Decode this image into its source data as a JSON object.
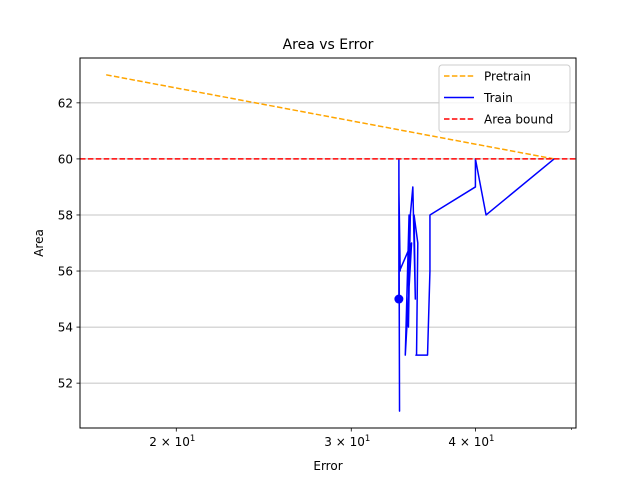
{
  "chart_data": {
    "type": "line",
    "title": "Area vs Error",
    "xlabel": "Error",
    "ylabel": "Area",
    "xscale": "log",
    "xlim": [
      16.0,
      50.5
    ],
    "ylim": [
      50.4,
      63.6
    ],
    "x_ticks": [
      {
        "value": 20,
        "label_base": "2 × 10",
        "label_exp": "1"
      },
      {
        "value": 30,
        "label_base": "3 × 10",
        "label_exp": "1"
      },
      {
        "value": 40,
        "label_base": "4 × 10",
        "label_exp": "1"
      }
    ],
    "x_minor_ticks": [
      50
    ],
    "y_ticks": [
      52,
      54,
      56,
      58,
      60,
      62
    ],
    "grid": "horizontal",
    "legend_position": "upper right",
    "series": [
      {
        "name": "Pretrain",
        "color": "#ffa500",
        "style": "dashed",
        "x": [
          17.0,
          48.0
        ],
        "y": [
          63.0,
          60.0
        ]
      },
      {
        "name": "Train",
        "color": "#0000ff",
        "style": "solid",
        "x": [
          33.5,
          33.5,
          33.55,
          33.5,
          33.6,
          33.55,
          34.5,
          34.0,
          34.3,
          34.25,
          34.4,
          34.6,
          34.8,
          34.7,
          35.0,
          34.9,
          34.85,
          35.1,
          35.0,
          35.8,
          36.0,
          36.0,
          40.0,
          40.0,
          41.0,
          48.0
        ],
        "y": [
          55.0,
          60.0,
          51.0,
          59.0,
          56.0,
          56.0,
          57.0,
          53.0,
          58.0,
          54.0,
          58.0,
          59.0,
          55.0,
          58.0,
          57.0,
          53.0,
          53.0,
          53.0,
          53.0,
          53.0,
          56.0,
          58.0,
          59.0,
          60.0,
          58.0,
          60.0
        ],
        "markers": [
          {
            "x": 33.5,
            "y": 55.0
          }
        ]
      },
      {
        "name": "Area bound",
        "color": "#ff0000",
        "style": "dashed",
        "hline": 60.0
      }
    ]
  }
}
